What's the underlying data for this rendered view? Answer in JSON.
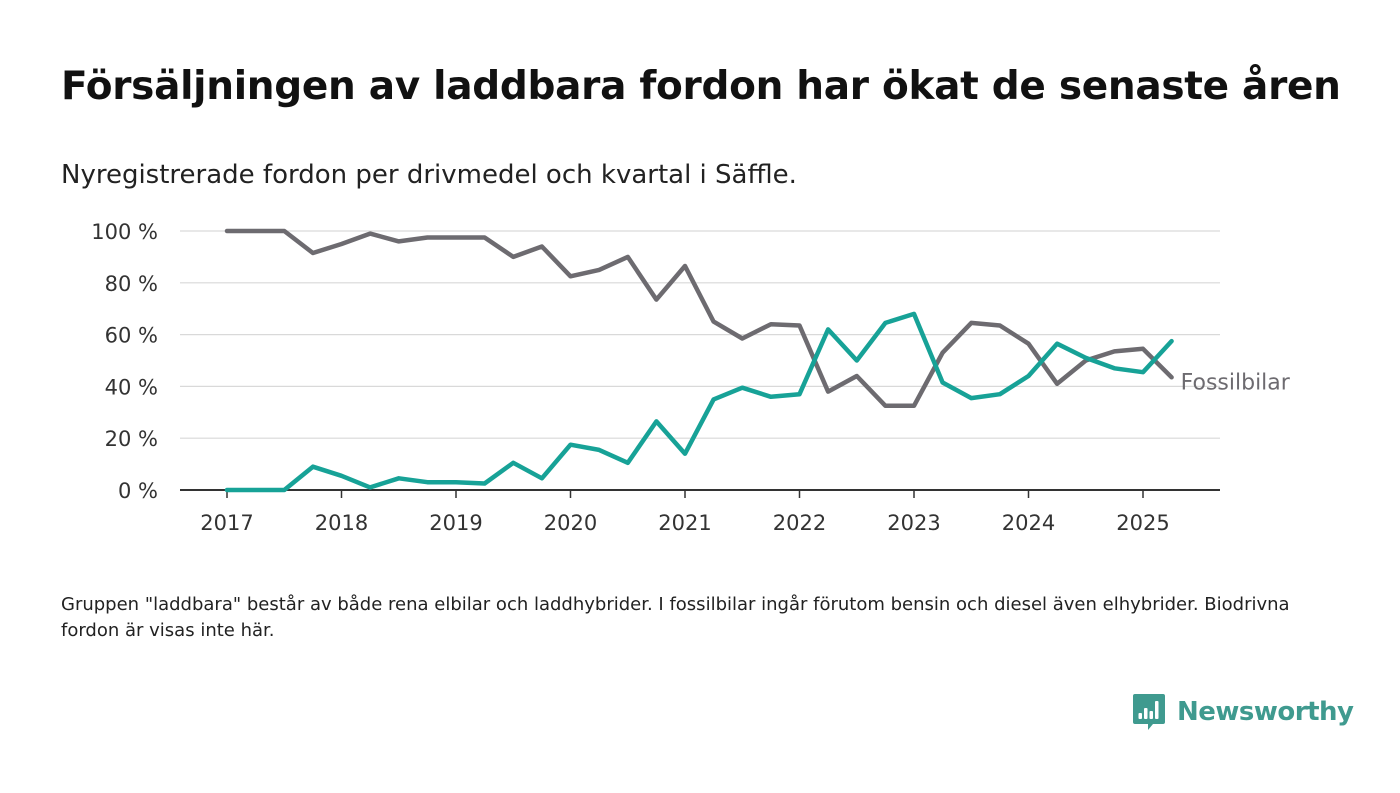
{
  "title": "Försäljningen av laddbara fordon har ökat de senaste åren",
  "subtitle": "Nyregistrerade fordon per drivmedel och kvartal i Säffle.",
  "note": "Gruppen \"laddbara\" består av både rena elbilar och laddhybrider. I fossilbilar ingår förutom bensin och diesel även elhybrider. Biodrivna fordon är visas inte här.",
  "brand": {
    "name": "Newsworthy",
    "icon": "newsworthy-logo-icon",
    "color": "#3f9a8f"
  },
  "chart_data": {
    "type": "line",
    "ylim": [
      0,
      100
    ],
    "yticks": [
      0,
      20,
      40,
      60,
      80,
      100
    ],
    "ytick_labels": [
      "0 %",
      "20 %",
      "40 %",
      "60 %",
      "80 %",
      "100 %"
    ],
    "xticks": [
      2017,
      2018,
      2019,
      2020,
      2021,
      2022,
      2023,
      2024,
      2025
    ],
    "xtick_labels": [
      "2017",
      "2018",
      "2019",
      "2020",
      "2021",
      "2022",
      "2023",
      "2024",
      "2025"
    ],
    "grid": true,
    "x": [
      2017.0,
      2017.25,
      2017.5,
      2017.75,
      2018.0,
      2018.25,
      2018.5,
      2018.75,
      2019.0,
      2019.25,
      2019.5,
      2019.75,
      2020.0,
      2020.25,
      2020.5,
      2020.75,
      2021.0,
      2021.25,
      2021.5,
      2021.75,
      2022.0,
      2022.25,
      2022.5,
      2022.75,
      2023.0,
      2023.25,
      2023.5,
      2023.75,
      2024.0,
      2024.25,
      2024.5,
      2024.75,
      2025.0,
      2025.25
    ],
    "series": [
      {
        "name": "Fossilbilar",
        "color": "#6d6b70",
        "values": [
          100,
          100,
          100,
          91.5,
          95,
          99,
          96,
          97.5,
          97.5,
          97.5,
          90,
          94,
          82.5,
          85,
          90,
          73.5,
          86.5,
          65,
          58.5,
          64,
          63.5,
          38,
          44,
          32.5,
          32.5,
          53,
          64.5,
          63.5,
          56.5,
          41,
          50,
          53.5,
          54.5,
          43.5
        ]
      },
      {
        "color": "#17a297",
        "values": [
          0,
          0,
          0,
          9,
          5.5,
          1,
          4.5,
          3,
          3,
          2.5,
          10.5,
          4.5,
          17.5,
          15.5,
          10.5,
          26.5,
          14,
          35,
          39.5,
          36,
          37,
          62,
          50,
          64.5,
          68,
          41.5,
          35.5,
          37,
          44,
          56.5,
          51,
          47,
          45.5,
          57.5
        ]
      }
    ],
    "end_label": "Fossilbilar"
  }
}
